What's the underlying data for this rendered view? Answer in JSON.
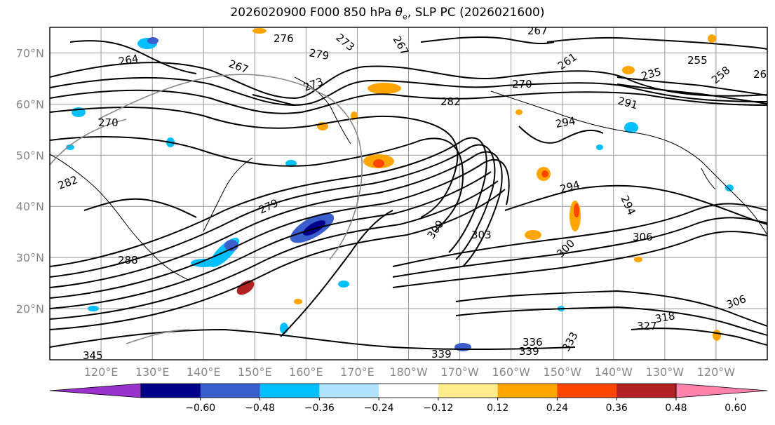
{
  "figure": {
    "title_prefix": "2026020900 F000 850 hPa ",
    "title_symbol": "θ",
    "title_sub": "e",
    "title_suffix": ", SLP PC (2026021600)"
  },
  "axes": {
    "lat_labels": [
      "70°N",
      "60°N",
      "50°N",
      "40°N",
      "30°N",
      "20°N"
    ],
    "lat_values": [
      70,
      60,
      50,
      40,
      30,
      20
    ],
    "lon_labels": [
      "120°E",
      "130°E",
      "140°E",
      "150°E",
      "160°E",
      "170°E",
      "180°W",
      "170°W",
      "160°W",
      "150°W",
      "140°W",
      "130°W",
      "120°W"
    ],
    "lat_range": [
      10,
      75
    ],
    "lon_range_east": [
      110,
      250
    ]
  },
  "colorbar": {
    "ticks": [
      "−0.60",
      "−0.48",
      "−0.36",
      "−0.24",
      "−0.12",
      "0.12",
      "0.24",
      "0.36",
      "0.48",
      "0.60"
    ],
    "colors": [
      "#9932cc",
      "#00008b",
      "#3a5fcd",
      "#00bfff",
      "#b0e2ff",
      "#ffffff",
      "#ffec8b",
      "#ffa500",
      "#ff4500",
      "#b22222",
      "#ff82ab"
    ]
  },
  "contour_labels": [
    {
      "text": "276"
    },
    {
      "text": "273"
    },
    {
      "text": "267"
    },
    {
      "text": "267"
    },
    {
      "text": "255"
    },
    {
      "text": "264"
    },
    {
      "text": "279"
    },
    {
      "text": "267"
    },
    {
      "text": "261"
    },
    {
      "text": "235"
    },
    {
      "text": "26"
    },
    {
      "text": "258"
    },
    {
      "text": "273"
    },
    {
      "text": "270"
    },
    {
      "text": "282"
    },
    {
      "text": "291"
    },
    {
      "text": "270"
    },
    {
      "text": "294"
    },
    {
      "text": "282"
    },
    {
      "text": "279"
    },
    {
      "text": "294"
    },
    {
      "text": "294"
    },
    {
      "text": "309"
    },
    {
      "text": "303"
    },
    {
      "text": "306"
    },
    {
      "text": "300"
    },
    {
      "text": "288"
    },
    {
      "text": "327"
    },
    {
      "text": "318"
    },
    {
      "text": "306"
    },
    {
      "text": "336"
    },
    {
      "text": "339"
    },
    {
      "text": "333"
    },
    {
      "text": "339"
    },
    {
      "text": "345"
    }
  ],
  "colorbar_extend": "both"
}
